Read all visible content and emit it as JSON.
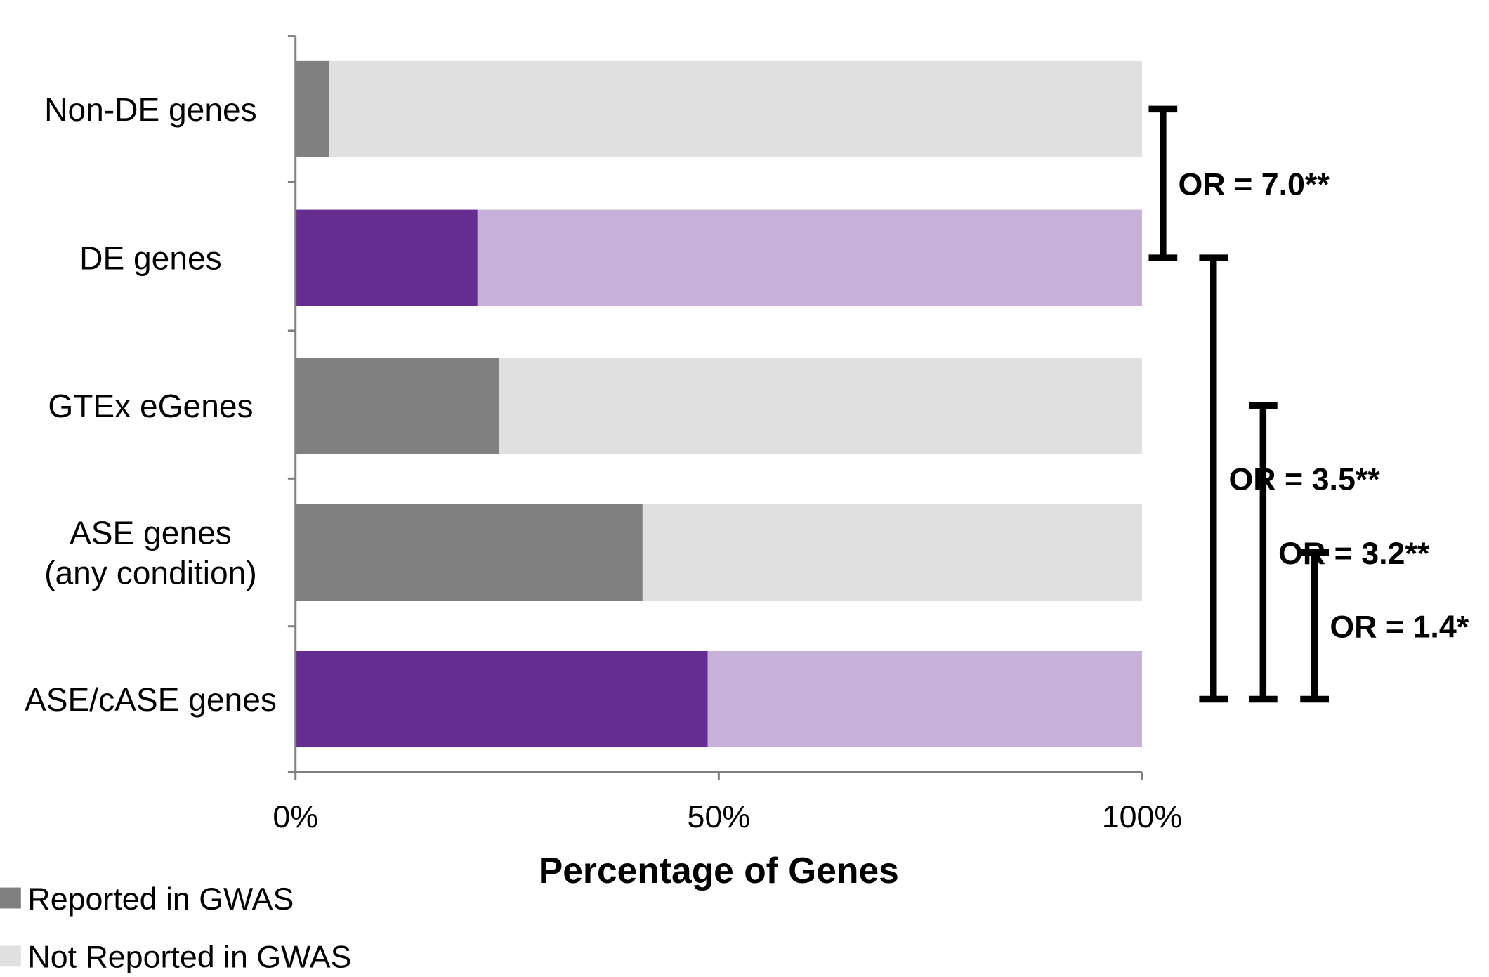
{
  "chart_data": {
    "type": "bar",
    "orientation": "horizontal",
    "stacked": true,
    "categories": [
      "Non-DE genes",
      "DE genes",
      "GTEx eGenes",
      "ASE genes (any condition)",
      "ASE/cASE genes"
    ],
    "category_lines": [
      [
        "Non-DE genes"
      ],
      [
        "DE genes"
      ],
      [
        "GTEx eGenes"
      ],
      [
        "ASE genes",
        "(any condition)"
      ],
      [
        "ASE/cASE genes"
      ]
    ],
    "series": [
      {
        "name": "Reported in GWAS",
        "values": [
          4,
          21.5,
          24,
          41,
          48.7
        ]
      },
      {
        "name": "Not Reported in GWAS",
        "values": [
          96,
          78.5,
          76,
          59,
          51.3
        ]
      }
    ],
    "bar_colors": {
      "reported": [
        "#808080",
        "#662d91",
        "#808080",
        "#808080",
        "#662d91"
      ],
      "not_reported": [
        "#e0e0e0",
        "#c8b1d8",
        "#e0e0e0",
        "#e0e0e0",
        "#c8b1d8"
      ]
    },
    "legend_colors": [
      "#808080",
      "#e0e0e0"
    ],
    "xlabel": "Percentage of Genes",
    "ylabel": "",
    "xlim": [
      0,
      100
    ],
    "xticks": [
      0,
      50,
      100
    ],
    "xtick_labels": [
      "0%",
      "50%",
      "100%"
    ],
    "grid": false,
    "legend_position": "bottom-left",
    "annotations": [
      {
        "from": "Non-DE genes",
        "to": "DE genes",
        "label": "OR = 7.0**"
      },
      {
        "from": "DE genes",
        "to": "ASE/cASE genes",
        "label": "OR = 3.5**"
      },
      {
        "from": "GTEx eGenes",
        "to": "ASE/cASE genes",
        "label": "OR =  3.2**"
      },
      {
        "from": "ASE genes (any condition)",
        "to": "ASE/cASE genes",
        "label": "OR = 1.4*"
      }
    ]
  }
}
